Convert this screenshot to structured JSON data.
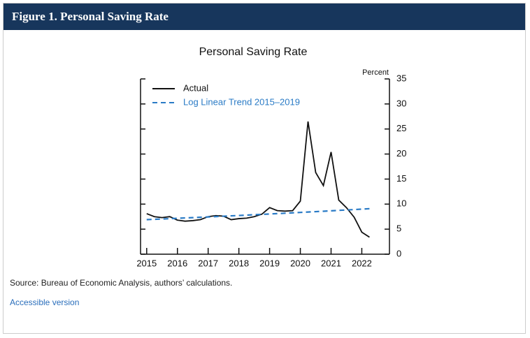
{
  "header": {
    "title": "Figure 1. Personal Saving Rate"
  },
  "chart_data": {
    "type": "line",
    "title": "Personal Saving Rate",
    "y_axis_label": "Percent",
    "x": [
      2015,
      2015.25,
      2015.5,
      2015.75,
      2016,
      2016.25,
      2016.5,
      2016.75,
      2017,
      2017.25,
      2017.5,
      2017.75,
      2018,
      2018.25,
      2018.5,
      2018.75,
      2019,
      2019.25,
      2019.5,
      2019.75,
      2020,
      2020.25,
      2020.5,
      2020.75,
      2021,
      2021.25,
      2021.5,
      2021.75,
      2022,
      2022.25
    ],
    "series": [
      {
        "name": "Actual",
        "color": "#111111",
        "dash": false,
        "values": [
          8.1,
          7.5,
          7.3,
          7.5,
          6.8,
          6.6,
          6.7,
          6.9,
          7.5,
          7.7,
          7.6,
          6.9,
          7.1,
          7.2,
          7.5,
          8.0,
          9.3,
          8.7,
          8.6,
          8.7,
          10.6,
          26.5,
          16.3,
          13.7,
          20.4,
          10.8,
          9.3,
          7.4,
          4.4,
          3.4
        ]
      },
      {
        "name": "Log Linear Trend 2015–2019",
        "color": "#2a7bc6",
        "dash": true,
        "values": [
          6.9,
          6.97,
          7.03,
          7.1,
          7.17,
          7.24,
          7.3,
          7.37,
          7.44,
          7.51,
          7.59,
          7.66,
          7.73,
          7.8,
          7.88,
          7.95,
          8.03,
          8.11,
          8.18,
          8.26,
          8.34,
          8.42,
          8.5,
          8.58,
          8.66,
          8.75,
          8.83,
          8.91,
          9.0,
          9.09
        ]
      }
    ],
    "xlim": [
      2014.8,
      2022.9
    ],
    "xticks": [
      2015,
      2016,
      2017,
      2018,
      2019,
      2020,
      2021,
      2022
    ],
    "ylim": [
      0,
      35
    ],
    "yticks": [
      0,
      5,
      10,
      15,
      20,
      25,
      30,
      35
    ],
    "grid": false,
    "legend": "upper left"
  },
  "source": "Source: Bureau of Economic Analysis, authors’ calculations.",
  "link": "Accessible version"
}
